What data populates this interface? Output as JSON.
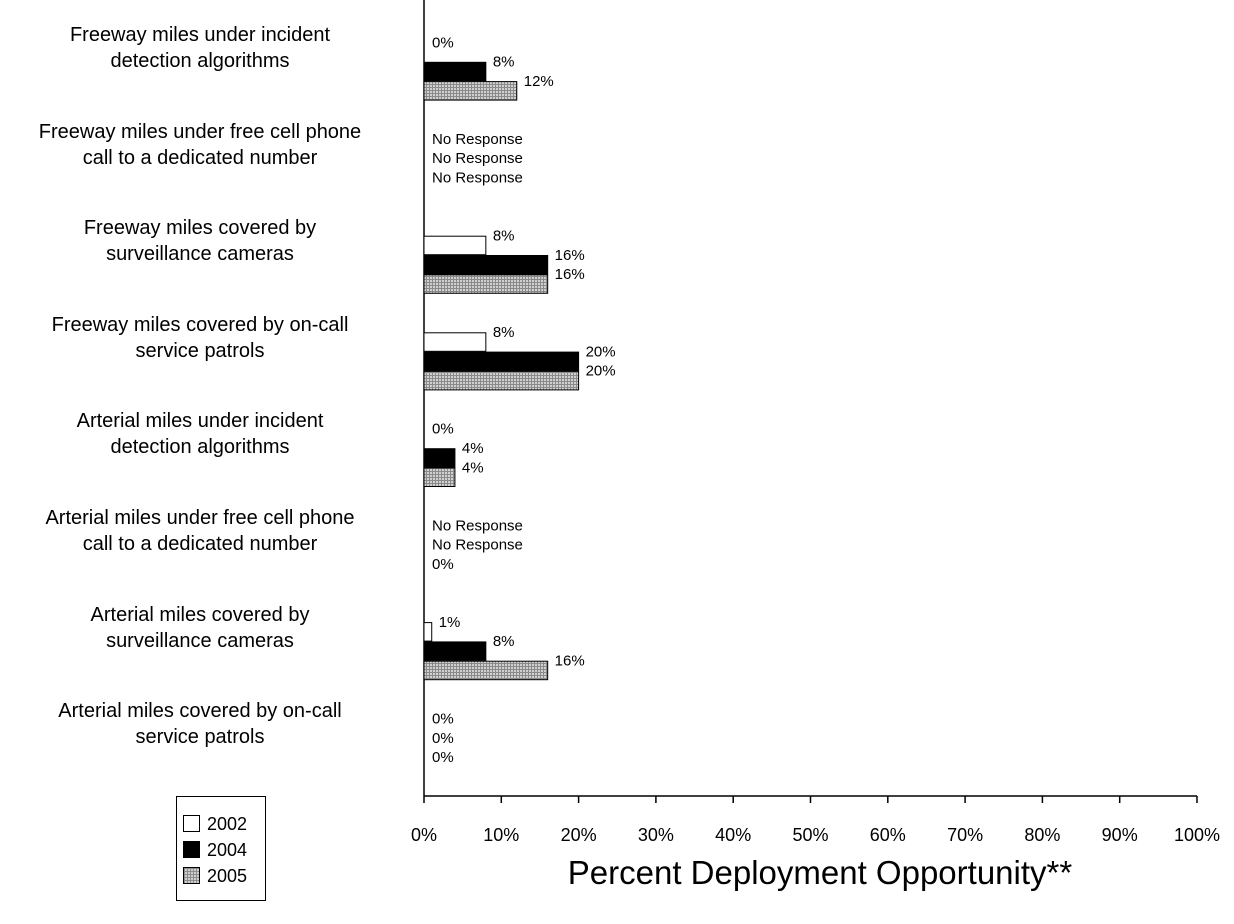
{
  "chart_data": {
    "type": "bar",
    "orientation": "horizontal",
    "categories": [
      [
        "Freeway miles under incident",
        "detection algorithms"
      ],
      [
        "Freeway miles under free cell phone",
        "call to a dedicated number"
      ],
      [
        "Freeway miles covered by",
        "surveillance cameras"
      ],
      [
        "Freeway miles covered by on-call",
        "service patrols"
      ],
      [
        "Arterial miles under incident",
        "detection algorithms"
      ],
      [
        "Arterial miles under free cell phone",
        "call to a dedicated number"
      ],
      [
        "Arterial miles covered by",
        "surveillance cameras"
      ],
      [
        "Arterial miles covered by on-call",
        "service patrols"
      ]
    ],
    "series": [
      {
        "name": "2002",
        "color": "#ffffff",
        "values": [
          0,
          null,
          8,
          8,
          0,
          null,
          1,
          0
        ],
        "labels": [
          "0%",
          "No Response",
          "8%",
          "8%",
          "0%",
          "No Response",
          "1%",
          "0%"
        ]
      },
      {
        "name": "2004",
        "color": "#000000",
        "values": [
          8,
          null,
          16,
          20,
          4,
          null,
          8,
          0
        ],
        "labels": [
          "8%",
          "No Response",
          "16%",
          "20%",
          "4%",
          "No Response",
          "8%",
          "0%"
        ]
      },
      {
        "name": "2005",
        "color": "#c8c8c8",
        "pattern": "grid",
        "values": [
          12,
          null,
          16,
          20,
          4,
          0,
          16,
          0
        ],
        "labels": [
          "12%",
          "No Response",
          "16%",
          "20%",
          "4%",
          "0%",
          "16%",
          "0%"
        ]
      }
    ],
    "xlim": [
      0,
      100
    ],
    "xticks": [
      "0%",
      "10%",
      "20%",
      "30%",
      "40%",
      "50%",
      "60%",
      "70%",
      "80%",
      "90%",
      "100%"
    ],
    "xlabel": "Percent Deployment Opportunity**",
    "legend": {
      "placement": "bottom-left",
      "entries": [
        "2002",
        "2004",
        "2005"
      ]
    }
  }
}
